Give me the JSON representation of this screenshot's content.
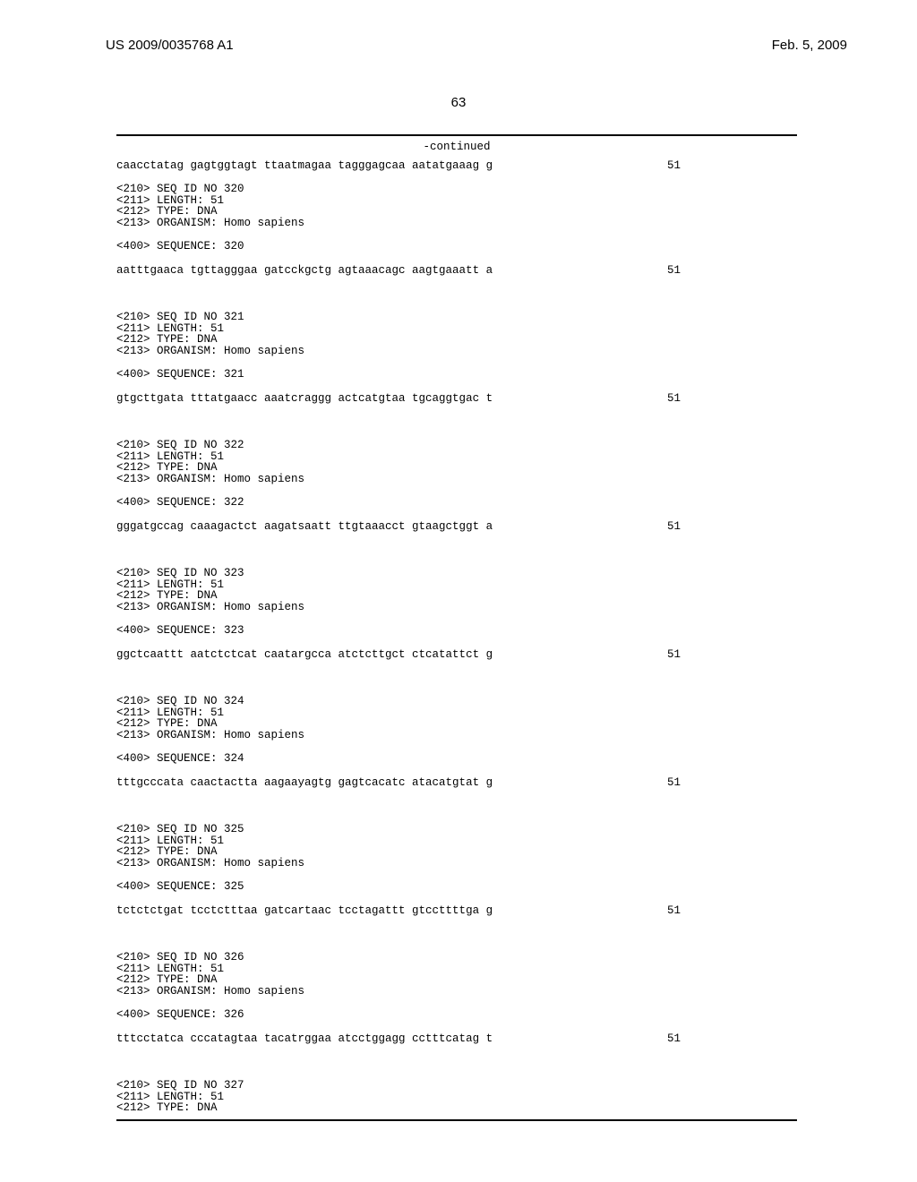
{
  "header": {
    "publication_number": "US 2009/0035768 A1",
    "publication_date": "Feb. 5, 2009"
  },
  "page_number": "63",
  "continued_label": "-continued",
  "top_sequence": {
    "text": "caacctatag gagtggtagt ttaatmagaa tagggagcaa aatatgaaag g",
    "length": "51"
  },
  "blocks": [
    {
      "id": "320",
      "meta": [
        "<210> SEQ ID NO 320",
        "<211> LENGTH: 51",
        "<212> TYPE: DNA",
        "<213> ORGANISM: Homo sapiens"
      ],
      "sequence_label": "<400> SEQUENCE: 320",
      "sequence": "aatttgaaca tgttagggaa gatcckgctg agtaaacagc aagtgaaatt a",
      "length": "51"
    },
    {
      "id": "321",
      "meta": [
        "<210> SEQ ID NO 321",
        "<211> LENGTH: 51",
        "<212> TYPE: DNA",
        "<213> ORGANISM: Homo sapiens"
      ],
      "sequence_label": "<400> SEQUENCE: 321",
      "sequence": "gtgcttgata tttatgaacc aaatcraggg actcatgtaa tgcaggtgac t",
      "length": "51"
    },
    {
      "id": "322",
      "meta": [
        "<210> SEQ ID NO 322",
        "<211> LENGTH: 51",
        "<212> TYPE: DNA",
        "<213> ORGANISM: Homo sapiens"
      ],
      "sequence_label": "<400> SEQUENCE: 322",
      "sequence": "gggatgccag caaagactct aagatsaatt ttgtaaacct gtaagctggt a",
      "length": "51"
    },
    {
      "id": "323",
      "meta": [
        "<210> SEQ ID NO 323",
        "<211> LENGTH: 51",
        "<212> TYPE: DNA",
        "<213> ORGANISM: Homo sapiens"
      ],
      "sequence_label": "<400> SEQUENCE: 323",
      "sequence": "ggctcaattt aatctctcat caatargcca atctcttgct ctcatattct g",
      "length": "51"
    },
    {
      "id": "324",
      "meta": [
        "<210> SEQ ID NO 324",
        "<211> LENGTH: 51",
        "<212> TYPE: DNA",
        "<213> ORGANISM: Homo sapiens"
      ],
      "sequence_label": "<400> SEQUENCE: 324",
      "sequence": "tttgcccata caactactta aagaayagtg gagtcacatc atacatgtat g",
      "length": "51"
    },
    {
      "id": "325",
      "meta": [
        "<210> SEQ ID NO 325",
        "<211> LENGTH: 51",
        "<212> TYPE: DNA",
        "<213> ORGANISM: Homo sapiens"
      ],
      "sequence_label": "<400> SEQUENCE: 325",
      "sequence": "tctctctgat tcctctttaa gatcartaac tcctagattt gtccttttga g",
      "length": "51"
    },
    {
      "id": "326",
      "meta": [
        "<210> SEQ ID NO 326",
        "<211> LENGTH: 51",
        "<212> TYPE: DNA",
        "<213> ORGANISM: Homo sapiens"
      ],
      "sequence_label": "<400> SEQUENCE: 326",
      "sequence": "tttcctatca cccatagtaa tacatrggaa atcctggagg cctttcatag t",
      "length": "51"
    }
  ],
  "trailing_meta": [
    "<210> SEQ ID NO 327",
    "<211> LENGTH: 51",
    "<212> TYPE: DNA"
  ]
}
